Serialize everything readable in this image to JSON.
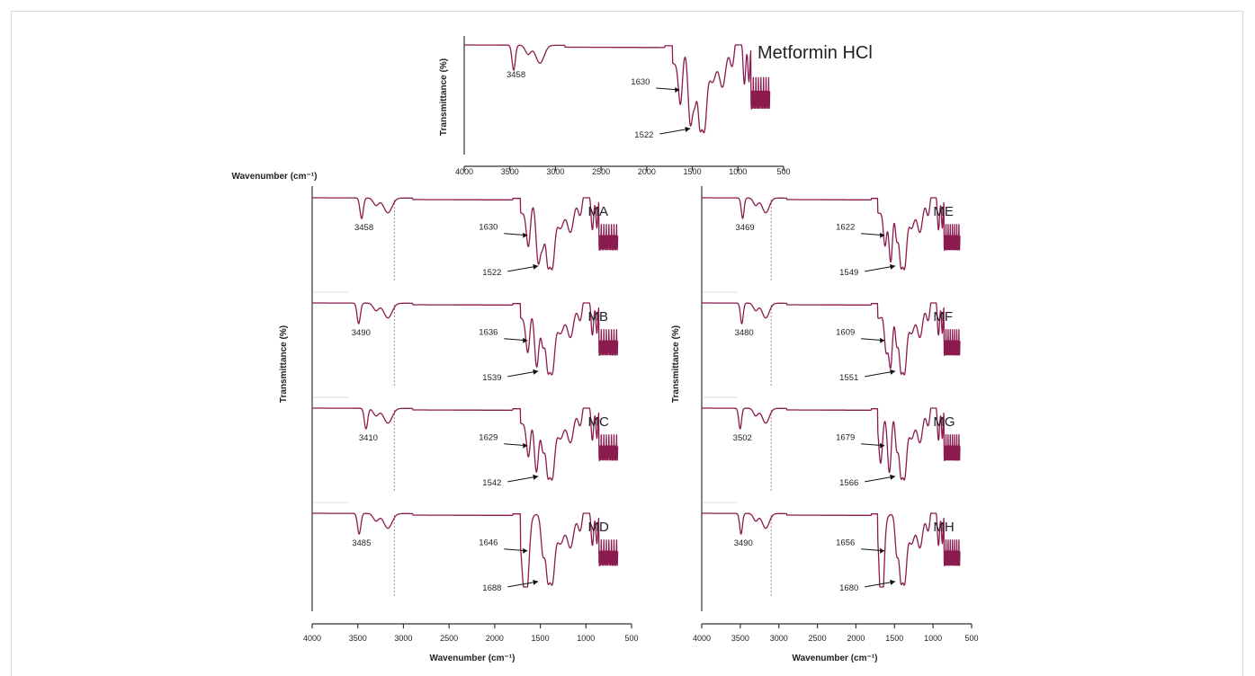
{
  "chart_data": [
    {
      "type": "line",
      "id": "top",
      "title": "Metformin HCl",
      "xlabel": "Wavenumber (cm⁻¹)",
      "ylabel": "Transmittance (%)",
      "xlim": [
        4000,
        500
      ],
      "x_ticks": [
        "4000",
        "3500",
        "3000",
        "2500",
        "2000",
        "1500",
        "1000",
        "500"
      ],
      "samples": [
        {
          "name": "Metformin HCl",
          "annotations": [
            {
              "text": "3458",
              "x": 3458
            },
            {
              "text": "1630",
              "x": 1630
            },
            {
              "text": "1522",
              "x": 1522
            }
          ]
        }
      ]
    },
    {
      "type": "line",
      "id": "left",
      "xlabel": "Wavenumber (cm⁻¹)",
      "ylabel": "Transmittance (%)",
      "xlim": [
        4000,
        500
      ],
      "x_ticks": [
        "4000",
        "3500",
        "3000",
        "2500",
        "2000",
        "1500",
        "1000",
        "500"
      ],
      "samples": [
        {
          "name": "MA",
          "annotations": [
            {
              "text": "3458",
              "x": 3458
            },
            {
              "text": "1630",
              "x": 1630
            },
            {
              "text": "1522",
              "x": 1522
            }
          ]
        },
        {
          "name": "MB",
          "annotations": [
            {
              "text": "3490",
              "x": 3490
            },
            {
              "text": "1636",
              "x": 1636
            },
            {
              "text": "1539",
              "x": 1539
            }
          ]
        },
        {
          "name": "MC",
          "annotations": [
            {
              "text": "3410",
              "x": 3410
            },
            {
              "text": "1629",
              "x": 1629
            },
            {
              "text": "1542",
              "x": 1542
            }
          ]
        },
        {
          "name": "MD",
          "annotations": [
            {
              "text": "3485",
              "x": 3485
            },
            {
              "text": "1646",
              "x": 1646
            },
            {
              "text": "1688",
              "x": 1688
            }
          ]
        }
      ]
    },
    {
      "type": "line",
      "id": "right",
      "xlabel": "Wavenumber (cm⁻¹)",
      "ylabel": "Transmittance (%)",
      "xlim": [
        4000,
        500
      ],
      "x_ticks": [
        "4000",
        "3500",
        "3000",
        "2500",
        "2000",
        "1500",
        "1000",
        "500"
      ],
      "samples": [
        {
          "name": "ME",
          "annotations": [
            {
              "text": "3469",
              "x": 3469
            },
            {
              "text": "1622",
              "x": 1622
            },
            {
              "text": "1549",
              "x": 1549
            }
          ]
        },
        {
          "name": "MF",
          "annotations": [
            {
              "text": "3480",
              "x": 3480
            },
            {
              "text": "1609",
              "x": 1609
            },
            {
              "text": "1551",
              "x": 1551
            }
          ]
        },
        {
          "name": "MG",
          "annotations": [
            {
              "text": "3502",
              "x": 3502
            },
            {
              "text": "1679",
              "x": 1679
            },
            {
              "text": "1566",
              "x": 1566
            }
          ]
        },
        {
          "name": "MH",
          "annotations": [
            {
              "text": "3490",
              "x": 3490
            },
            {
              "text": "1656",
              "x": 1656
            },
            {
              "text": "1680",
              "x": 1680
            }
          ]
        }
      ]
    }
  ],
  "colors": {
    "trace": "#8b1a4f",
    "axis": "#333333"
  }
}
